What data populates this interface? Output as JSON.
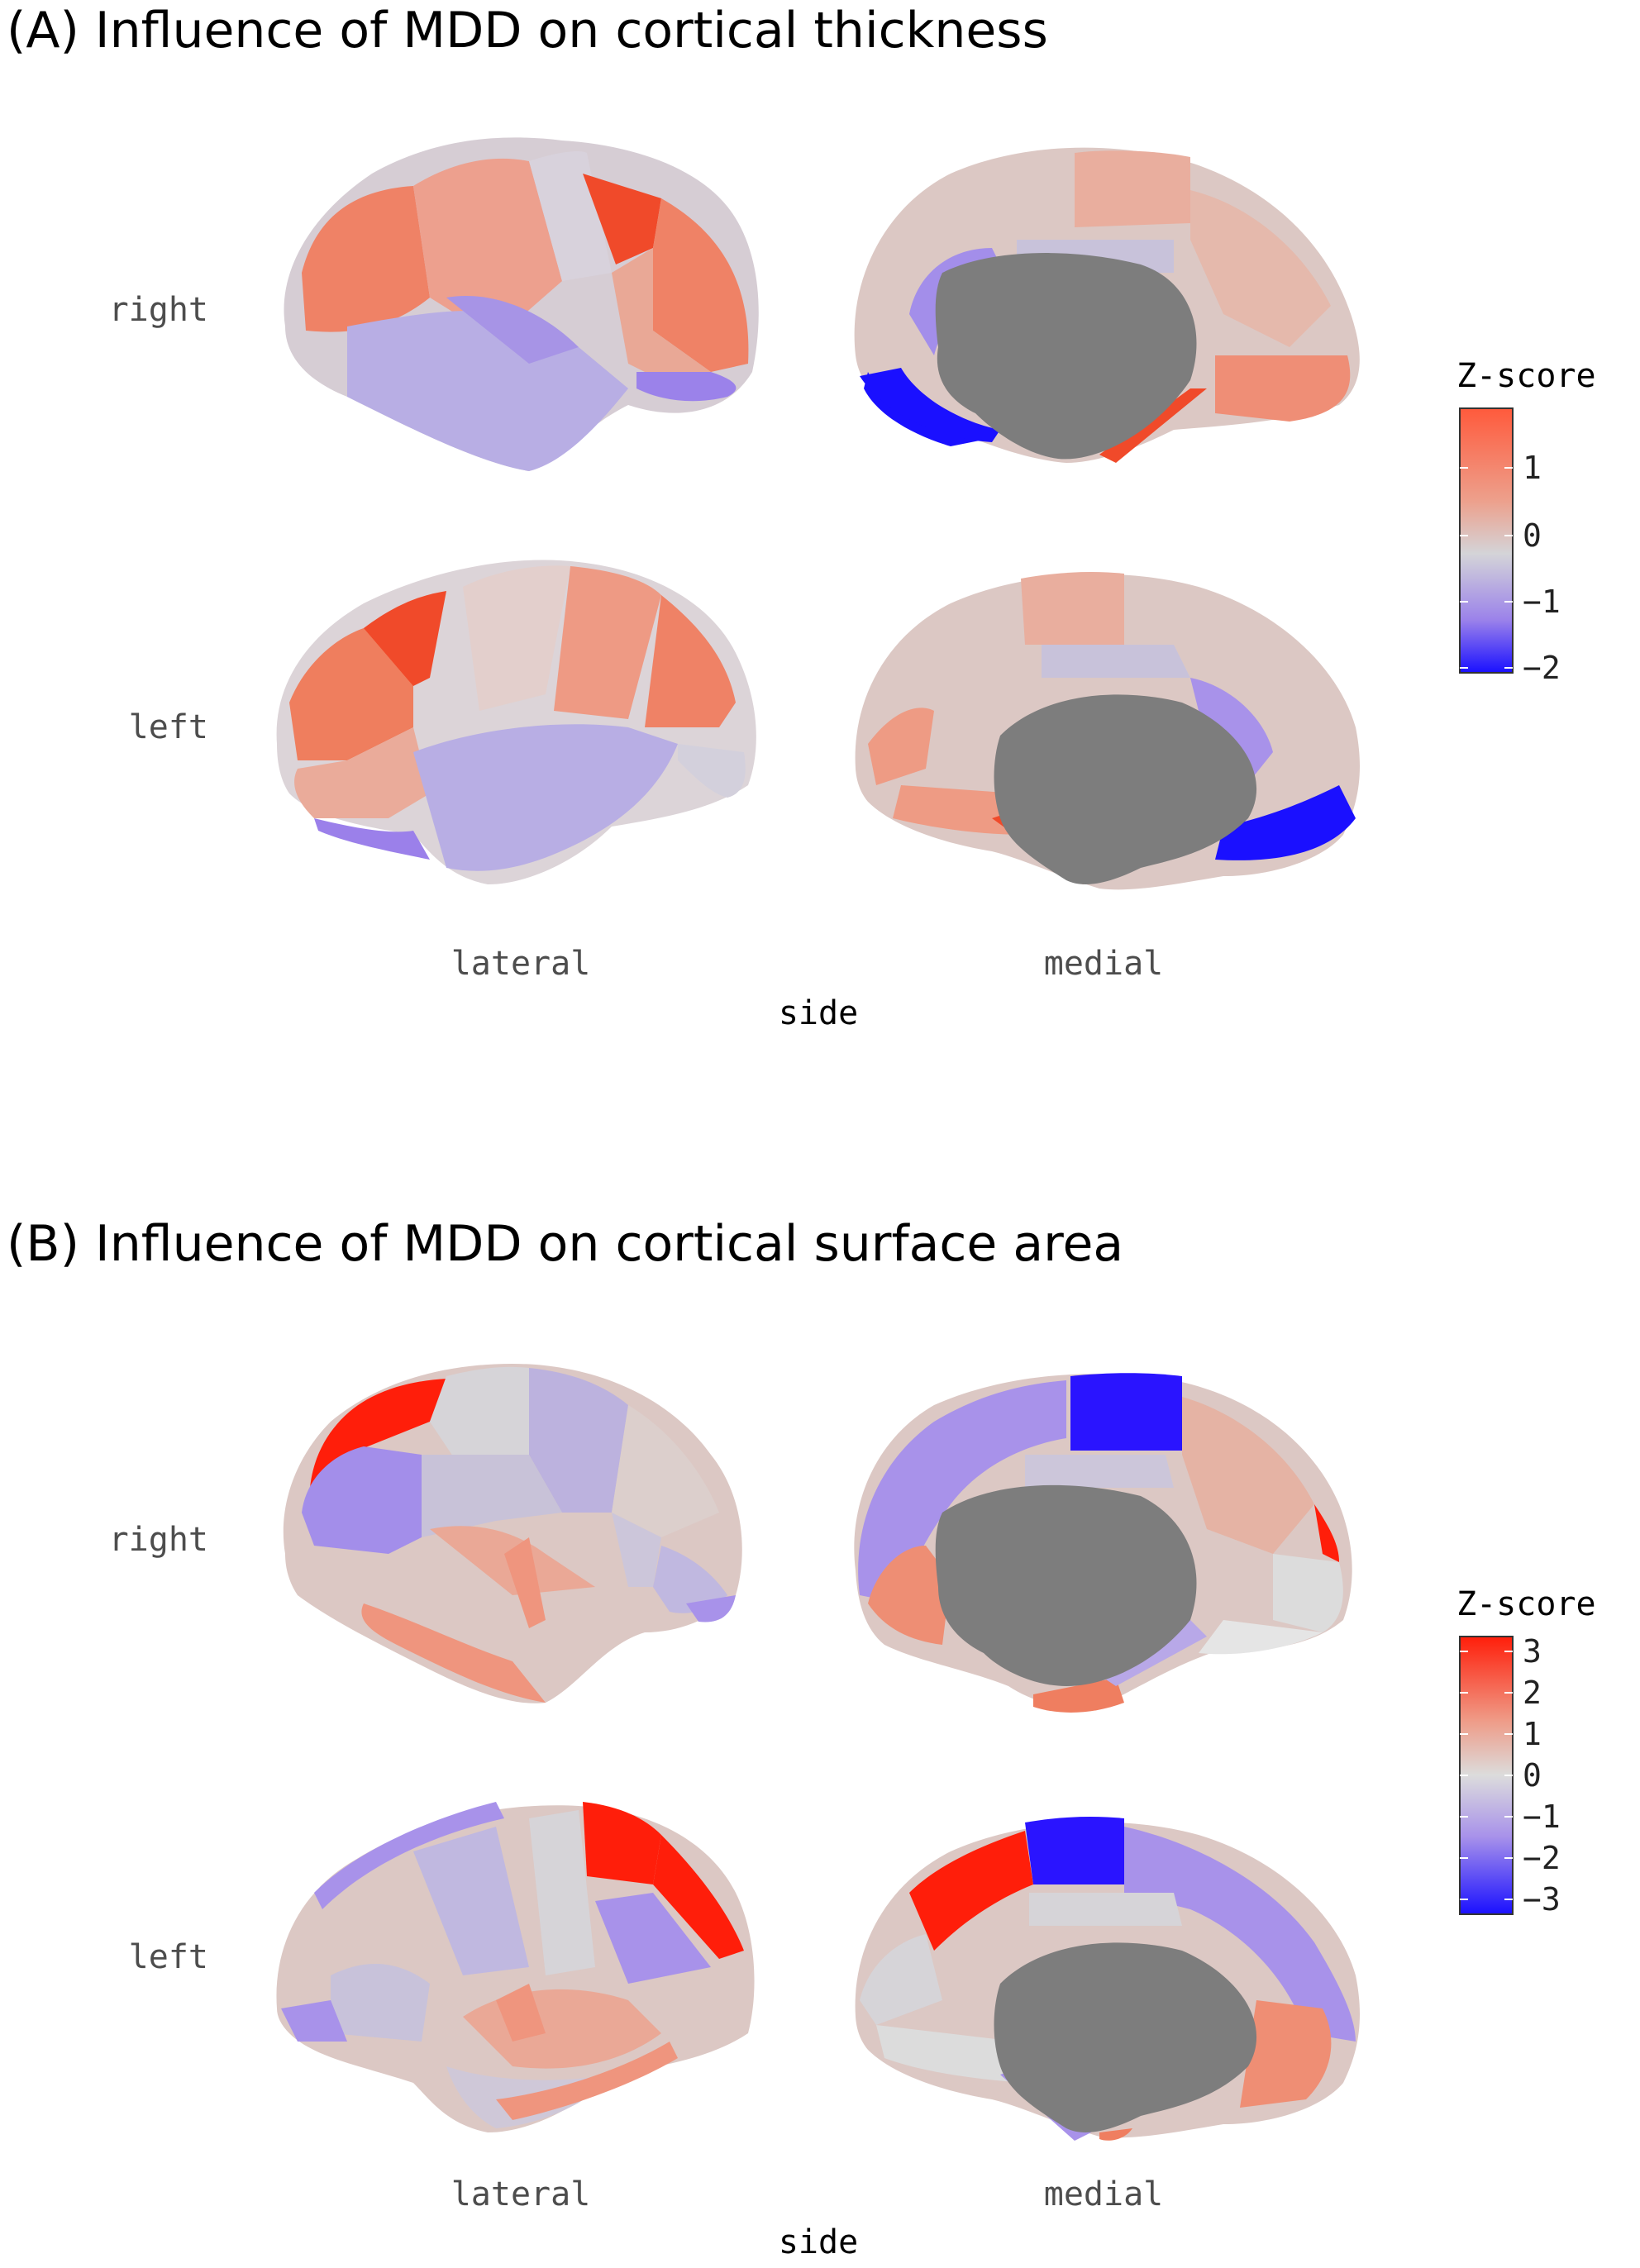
{
  "panels": [
    {
      "title": "(A) Influence of MDD on cortical thickness",
      "row_labels": [
        "right",
        "left"
      ],
      "col_labels": [
        "lateral",
        "medial"
      ],
      "x_axis_title": "side",
      "legend": {
        "title": "Z-score",
        "ticks": [
          "1",
          "0",
          "−1",
          "−2"
        ]
      }
    },
    {
      "title": "(B) Influence of MDD on cortical surface area",
      "row_labels": [
        "right",
        "left"
      ],
      "col_labels": [
        "lateral",
        "medial"
      ],
      "x_axis_title": "side",
      "legend": {
        "title": "Z-score",
        "ticks": [
          "3",
          "2",
          "1",
          "0",
          "−1",
          "−2",
          "−3"
        ]
      }
    }
  ],
  "colors": {
    "high": "#ff1e0a",
    "mid": "#dcdcdc",
    "low": "#1a10ff",
    "medial_wall": "#7d7d7d"
  }
}
